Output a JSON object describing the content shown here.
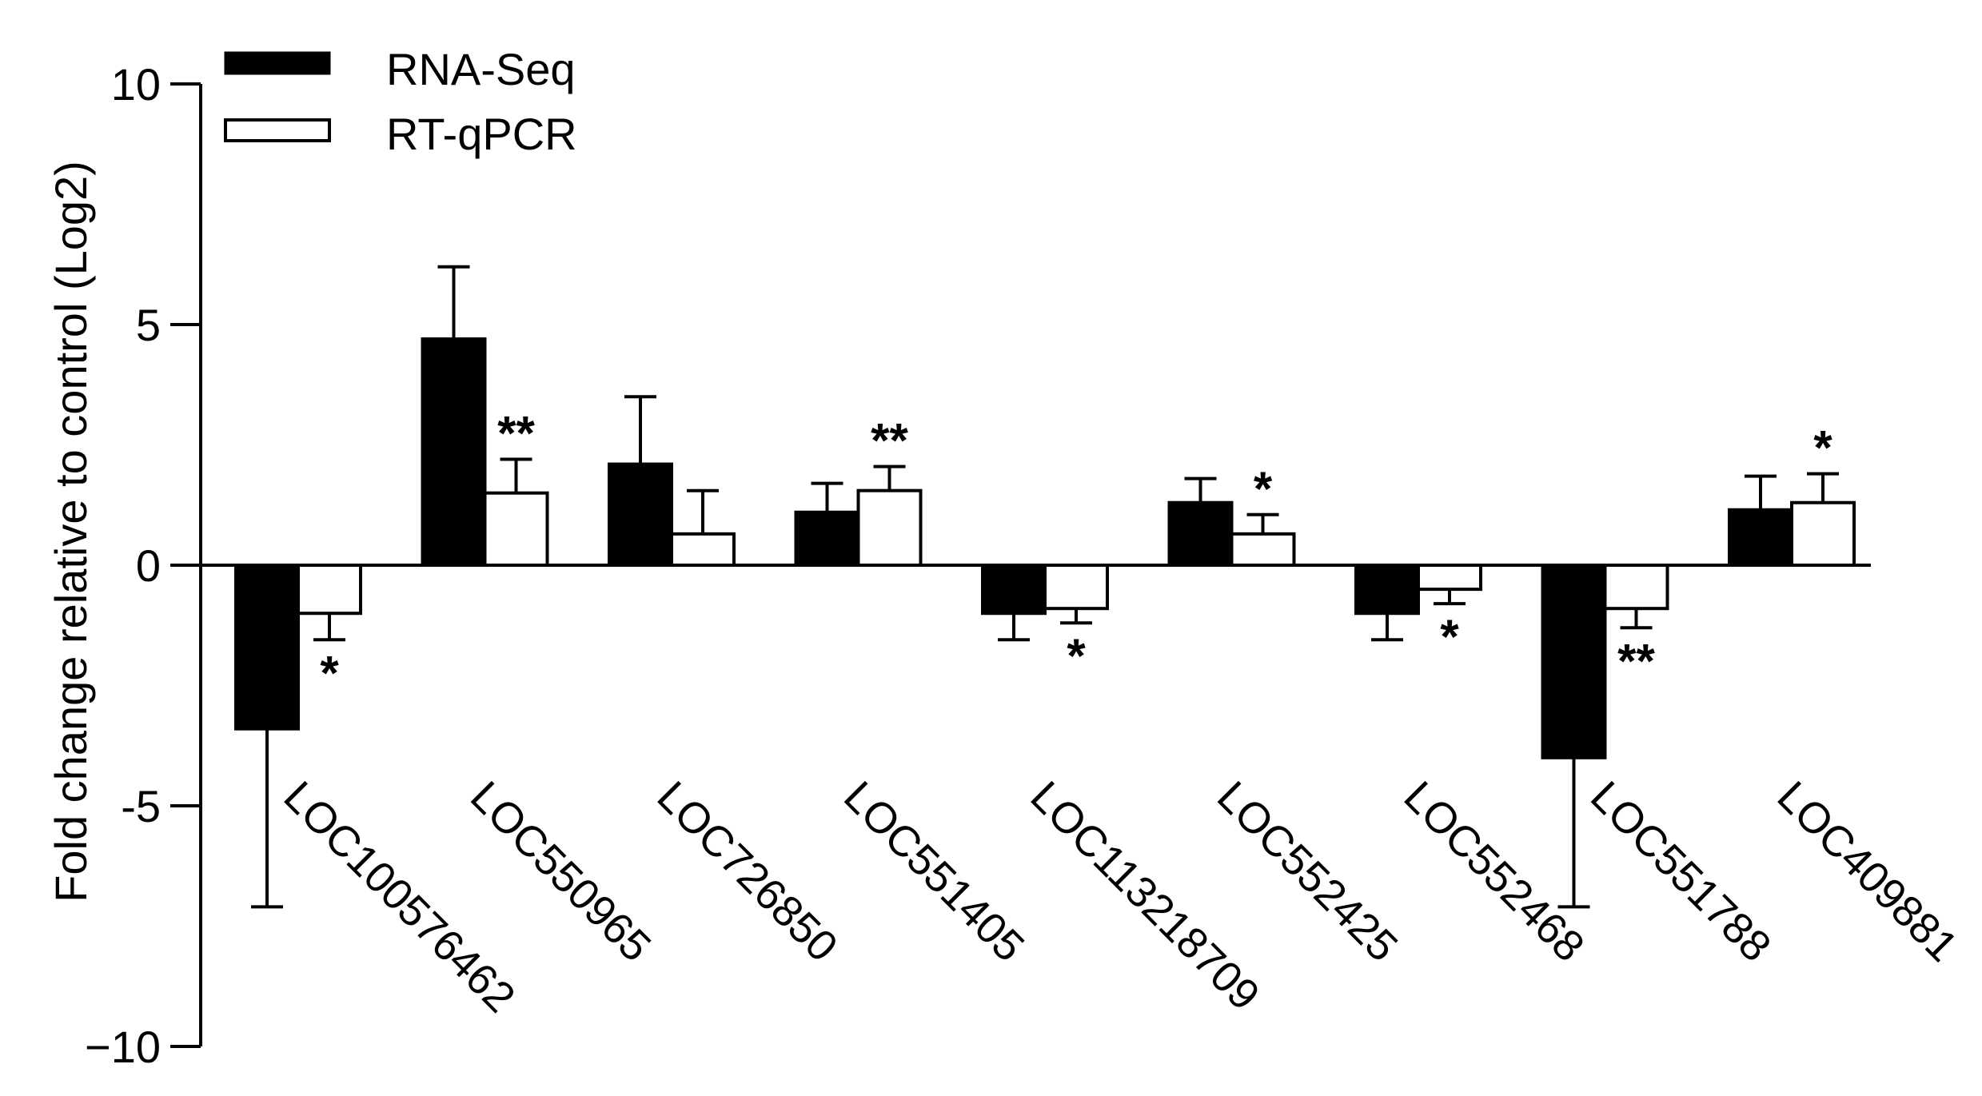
{
  "chart_data": {
    "type": "bar",
    "title": "",
    "xlabel": "",
    "ylabel": "Fold change relative to control (Log2)",
    "ylim": [
      -10,
      10
    ],
    "yticks": [
      10,
      5,
      0,
      -5,
      -10
    ],
    "ytick_labels": [
      "10",
      "5",
      "0",
      "-5",
      "−10"
    ],
    "grid": false,
    "legend_position": "top-left",
    "categories": [
      "LOC100576462",
      "LOC550965",
      "LOC726850",
      "LOC551405",
      "LOC113218709",
      "LOC552425",
      "LOC552468",
      "LOC551788",
      "LOC409881"
    ],
    "series": [
      {
        "name": "RNA-Seq",
        "fill": "#000000",
        "values": [
          -3.4,
          4.7,
          2.1,
          1.1,
          -1.0,
          1.3,
          -1.0,
          -4.0,
          1.15
        ],
        "errors": [
          3.7,
          1.5,
          1.4,
          0.6,
          0.55,
          0.5,
          0.55,
          3.1,
          0.7
        ],
        "error_direction": "away"
      },
      {
        "name": "RT-qPCR",
        "fill": "#ffffff",
        "values": [
          -1.0,
          1.5,
          0.65,
          1.55,
          -0.9,
          0.65,
          -0.5,
          -0.9,
          1.3
        ],
        "errors": [
          0.55,
          0.7,
          0.9,
          0.5,
          0.3,
          0.4,
          0.3,
          0.4,
          0.6
        ],
        "error_direction": "away",
        "significance": [
          "*",
          "**",
          "",
          "**",
          "*",
          "*",
          "*",
          "**",
          "*"
        ]
      }
    ]
  }
}
